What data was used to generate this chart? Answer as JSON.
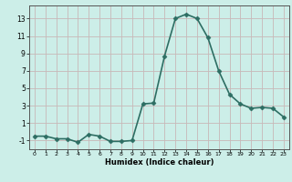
{
  "x": [
    0,
    1,
    2,
    3,
    4,
    5,
    6,
    7,
    8,
    9,
    10,
    11,
    12,
    13,
    14,
    15,
    16,
    17,
    18,
    19,
    20,
    21,
    22,
    23
  ],
  "y": [
    -0.5,
    -0.5,
    -0.8,
    -0.8,
    -1.2,
    -0.3,
    -0.5,
    -1.1,
    -1.1,
    -1.0,
    3.2,
    3.3,
    8.7,
    13.0,
    13.5,
    13.0,
    10.8,
    7.0,
    4.3,
    3.2,
    2.7,
    2.8,
    2.7,
    1.7
  ],
  "line_color": "#2d6e63",
  "bg_color": "#cceee8",
  "grid_color": "#c8b8b8",
  "xlabel": "Humidex (Indice chaleur)",
  "xlim": [
    -0.5,
    23.5
  ],
  "ylim": [
    -2,
    14.5
  ],
  "yticks": [
    -1,
    1,
    3,
    5,
    7,
    9,
    11,
    13
  ],
  "xticks": [
    0,
    1,
    2,
    3,
    4,
    5,
    6,
    7,
    8,
    9,
    10,
    11,
    12,
    13,
    14,
    15,
    16,
    17,
    18,
    19,
    20,
    21,
    22,
    23
  ],
  "markersize": 2.5,
  "linewidth": 1.2
}
